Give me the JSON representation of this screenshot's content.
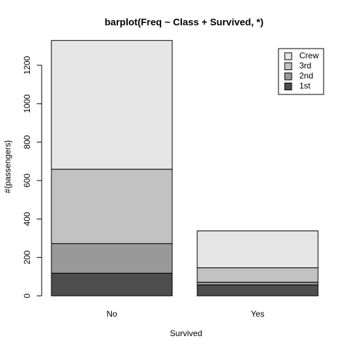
{
  "chart_data": {
    "type": "bar",
    "stacked": true,
    "title": "barplot(Freq ~ Class + Survived, *)",
    "xlabel": "Survived",
    "ylabel": "#{passengers}",
    "categories": [
      "No",
      "Yes"
    ],
    "series": [
      {
        "name": "1st",
        "color": "#4d4d4d",
        "values": [
          118,
          57
        ]
      },
      {
        "name": "2nd",
        "color": "#999999",
        "values": [
          154,
          14
        ]
      },
      {
        "name": "3rd",
        "color": "#c2c2c2",
        "values": [
          387,
          75
        ]
      },
      {
        "name": "Crew",
        "color": "#e6e6e6",
        "values": [
          670,
          192
        ]
      }
    ],
    "ylim": [
      0,
      1329
    ],
    "yticks": [
      0,
      200,
      400,
      600,
      800,
      1000,
      1200
    ],
    "legend": "top-right"
  }
}
